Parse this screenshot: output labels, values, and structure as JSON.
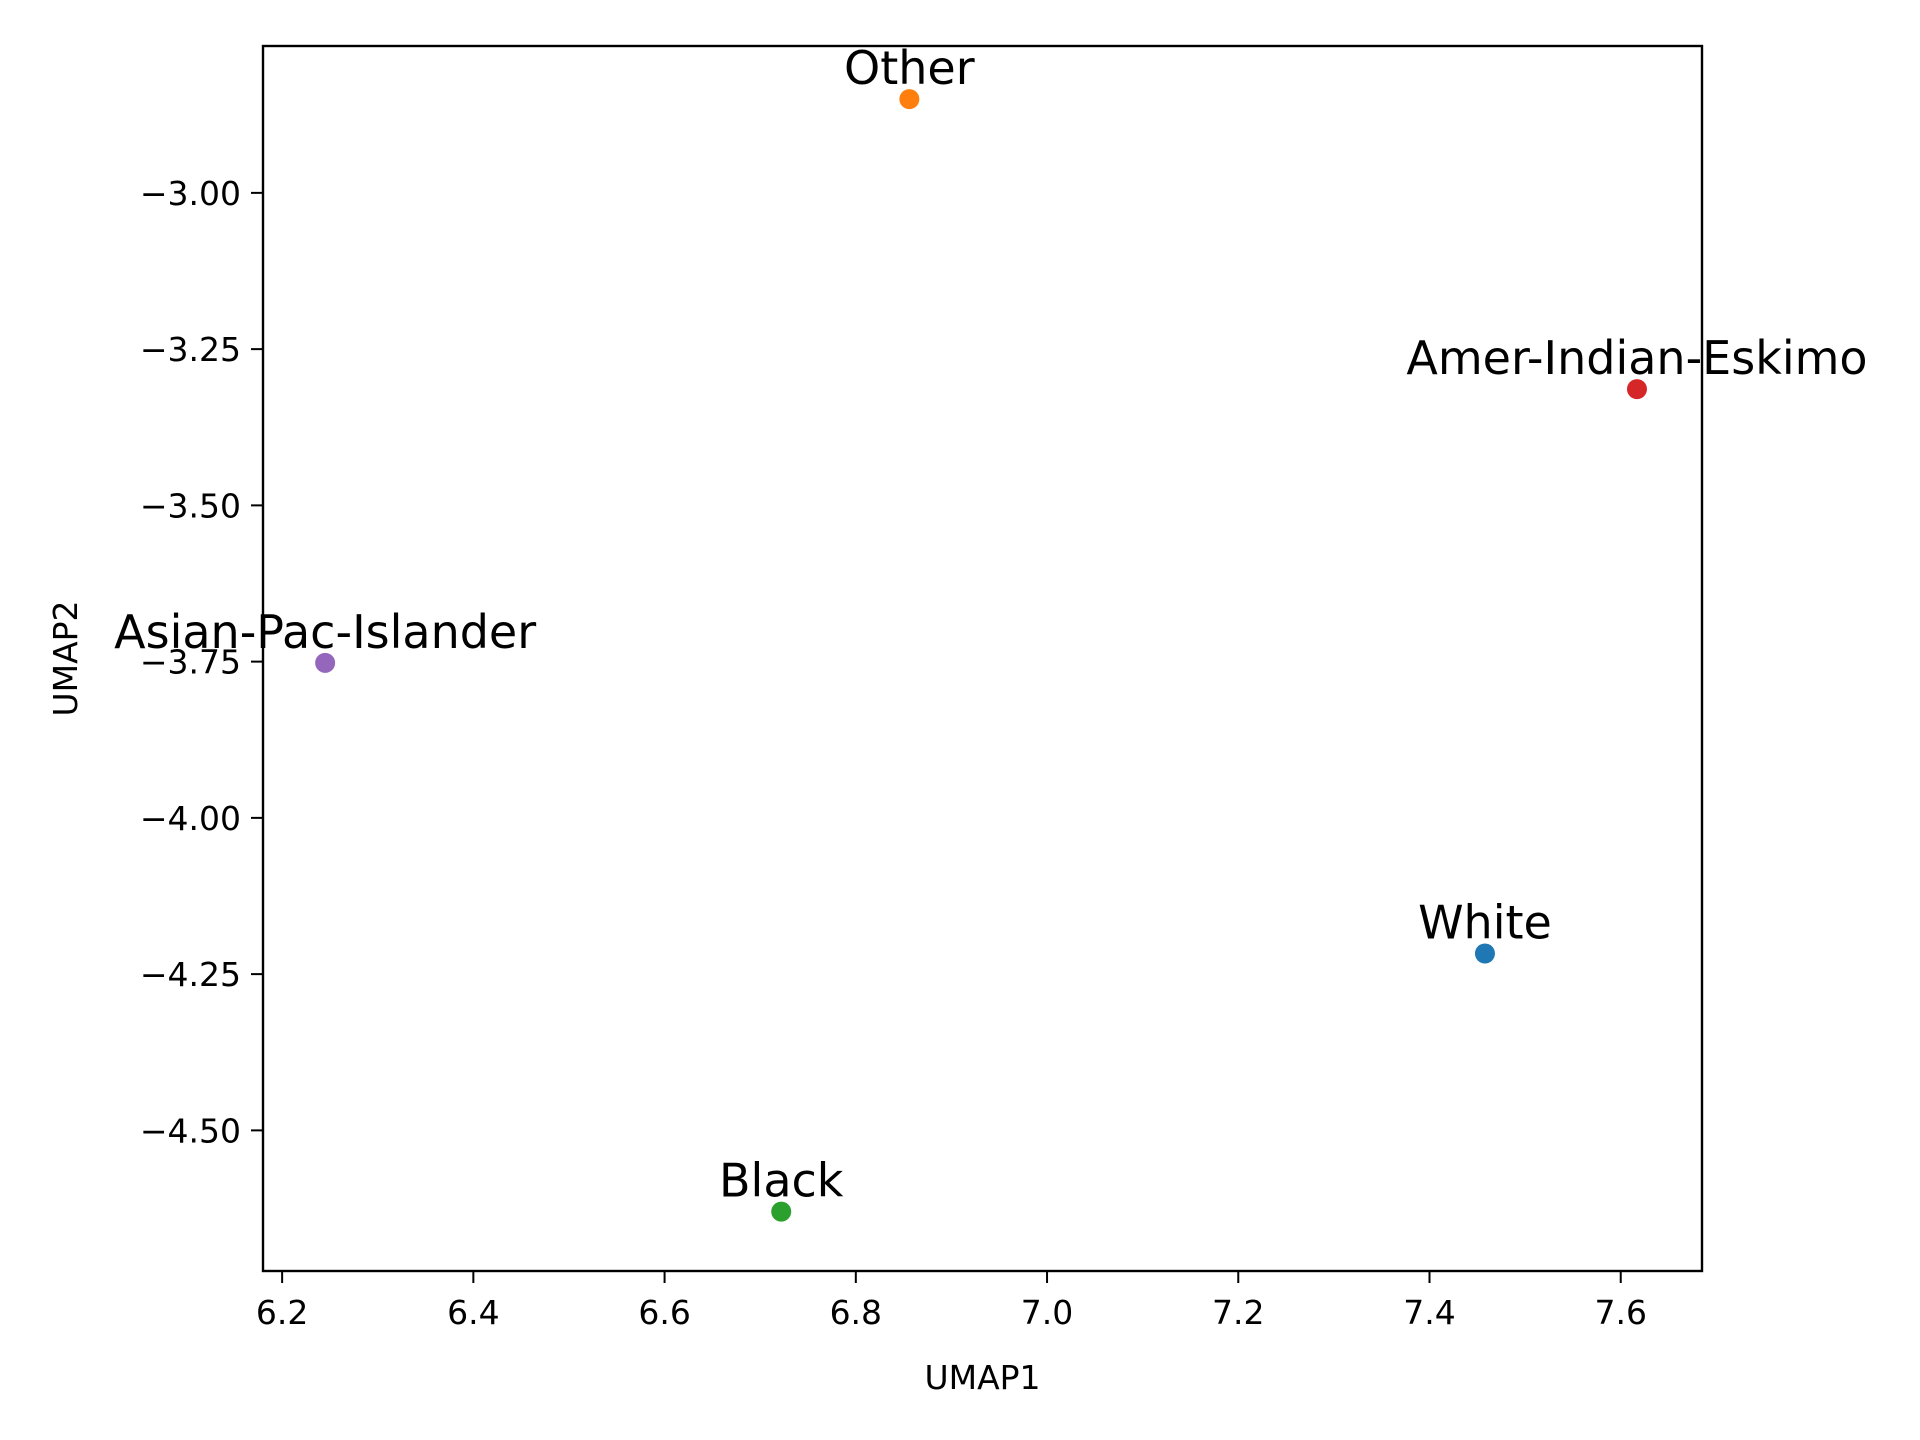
{
  "chart_data": {
    "type": "scatter",
    "title": "",
    "xlabel": "UMAP1",
    "ylabel": "UMAP2",
    "xlim": [
      6.18,
      7.685
    ],
    "ylim": [
      -4.725,
      -2.765
    ],
    "xticks": [
      6.2,
      6.4,
      6.6,
      6.8,
      7.0,
      7.2,
      7.4,
      7.6
    ],
    "xtick_labels": [
      "6.2",
      "6.4",
      "6.6",
      "6.8",
      "7.0",
      "7.2",
      "7.4",
      "7.6"
    ],
    "yticks": [
      -3.0,
      -3.25,
      -3.5,
      -3.75,
      -4.0,
      -4.25,
      -4.5
    ],
    "ytick_labels": [
      "−3.00",
      "−3.25",
      "−3.50",
      "−3.75",
      "−4.00",
      "−4.25",
      "−4.50"
    ],
    "grid": false,
    "legend": "none",
    "points": [
      {
        "label": "White",
        "x": 7.458,
        "y": -4.217,
        "color": "#1f77b4"
      },
      {
        "label": "Other",
        "x": 6.856,
        "y": -2.85,
        "color": "#ff7f0e"
      },
      {
        "label": "Black",
        "x": 6.722,
        "y": -4.63,
        "color": "#2ca02c"
      },
      {
        "label": "Amer-Indian-Eskimo",
        "x": 7.617,
        "y": -3.314,
        "color": "#d62728"
      },
      {
        "label": "Asian-Pac-Islander",
        "x": 6.245,
        "y": -3.752,
        "color": "#9467bd"
      }
    ]
  }
}
